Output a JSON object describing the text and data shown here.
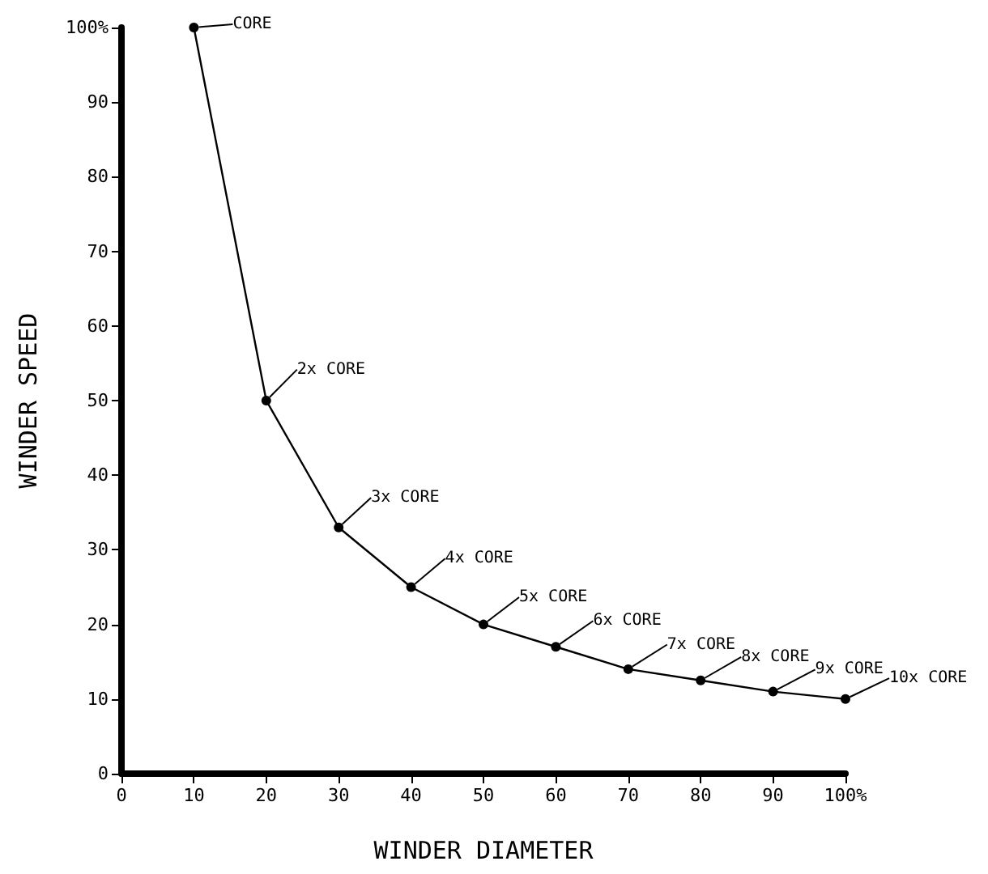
{
  "chart_data": {
    "type": "line",
    "xlabel": "WINDER DIAMETER",
    "ylabel": "WINDER SPEED",
    "x": [
      10,
      20,
      30,
      40,
      50,
      60,
      70,
      80,
      90,
      100
    ],
    "series": [
      {
        "color": "#000000",
        "values": [
          100,
          50,
          33,
          25,
          20,
          17,
          14,
          12.5,
          11,
          10
        ]
      }
    ],
    "xlim": [
      0,
      100
    ],
    "ylim": [
      0,
      100
    ],
    "xticks": [
      0,
      10,
      20,
      30,
      40,
      50,
      60,
      70,
      80,
      90,
      {
        "value": 100,
        "label": "100%"
      }
    ],
    "yticks": [
      0,
      10,
      20,
      30,
      40,
      50,
      60,
      70,
      80,
      90,
      {
        "value": 100,
        "label": "100%"
      }
    ],
    "annotations": [
      {
        "text": "CORE",
        "x": 10,
        "y": 100
      },
      {
        "text": "2x CORE",
        "x": 20,
        "y": 50
      },
      {
        "text": "3x CORE",
        "x": 30,
        "y": 33
      },
      {
        "text": "4x CORE",
        "x": 40,
        "y": 25
      },
      {
        "text": "5x CORE",
        "x": 50,
        "y": 20
      },
      {
        "text": "6x CORE",
        "x": 60,
        "y": 17
      },
      {
        "text": "7x CORE",
        "x": 70,
        "y": 14
      },
      {
        "text": "8x CORE",
        "x": 80,
        "y": 12.5
      },
      {
        "text": "9x CORE",
        "x": 90,
        "y": 11
      },
      {
        "text": "10x CORE",
        "x": 100,
        "y": 10
      }
    ],
    "grid": false,
    "marker": "circle",
    "line_style": "solid"
  }
}
